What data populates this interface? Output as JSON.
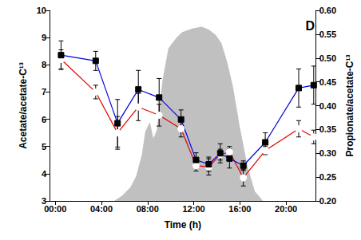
{
  "chart_data": {
    "type": "line",
    "annotation": "D",
    "x_label": "Time (h)",
    "y_label": "Acetate/acetate-C¹³",
    "y2_label": "Propionate/acetate-C¹³",
    "xlim": [
      -0.5,
      22.6
    ],
    "xticks": [
      {
        "value": 0,
        "label": "00:00"
      },
      {
        "value": 4,
        "label": "04:00"
      },
      {
        "value": 8,
        "label": "08:00"
      },
      {
        "value": 12,
        "label": "12:00"
      },
      {
        "value": 16,
        "label": "16:00"
      },
      {
        "value": 20,
        "label": "20:00"
      }
    ],
    "ylim": [
      3,
      10
    ],
    "yticks": [
      3,
      4,
      5,
      6,
      7,
      8,
      9,
      10
    ],
    "y2lim": [
      0.2,
      0.6
    ],
    "y2ticks": [
      {
        "value": 0.2,
        "label": "0.20"
      },
      0.25,
      {
        "value": 0.3,
        "label": "0.30"
      },
      0.35,
      {
        "value": 0.4,
        "label": "0.40"
      },
      0.45,
      {
        "value": 0.5,
        "label": "0.50"
      },
      0.55,
      {
        "value": 0.6,
        "label": "0.60"
      }
    ],
    "grid": false,
    "series": [
      {
        "type": "area",
        "axis": "y",
        "color": "#c0c0c0",
        "x": [
          5.1,
          5.8,
          6.5,
          7.0,
          7.5,
          7.8,
          8.2,
          8.5,
          8.8,
          9.3,
          9.8,
          10.5,
          11.0,
          12.0,
          12.7,
          13.3,
          13.9,
          14.4,
          14.9,
          15.4,
          16.0,
          16.7,
          17.3,
          18.0
        ],
        "values": [
          3.0,
          3.2,
          3.5,
          3.9,
          4.7,
          5.55,
          5.9,
          5.3,
          5.6,
          7.45,
          8.6,
          9.0,
          9.2,
          9.35,
          9.4,
          9.3,
          9.1,
          8.8,
          8.1,
          7.2,
          5.7,
          4.2,
          3.35,
          3.0
        ]
      },
      {
        "type": "line",
        "axis": "y",
        "color": "#e00000",
        "marker": "open circle",
        "x": [
          0.5,
          3.5,
          5.4,
          7.2,
          9.0,
          10.9,
          12.2,
          13.3,
          14.3,
          15.1,
          16.3,
          18.2,
          21.1,
          22.4
        ],
        "values": [
          8.2,
          7.0,
          5.5,
          6.45,
          6.15,
          5.65,
          4.3,
          4.25,
          4.7,
          4.8,
          3.85,
          4.85,
          5.65,
          5.35
        ],
        "errors": [
          0.35,
          0.25,
          0.6,
          0.5,
          0.4,
          0.3,
          0.2,
          0.3,
          0.2,
          0.2,
          0.3,
          0.15,
          0.3,
          0.25
        ]
      },
      {
        "type": "line",
        "axis": "y2",
        "color": "#0000e0",
        "marker": "square",
        "x": [
          0.5,
          3.5,
          5.4,
          7.2,
          9.0,
          10.9,
          12.2,
          13.3,
          14.3,
          15.1,
          16.3,
          18.2,
          21.1,
          22.4
        ],
        "values": [
          0.506,
          0.494,
          0.363,
          0.434,
          0.417,
          0.371,
          0.286,
          0.277,
          0.3,
          0.289,
          0.274,
          0.323,
          0.437,
          0.443
        ],
        "errors": [
          0.03,
          0.02,
          0.05,
          0.04,
          0.04,
          0.02,
          0.015,
          0.015,
          0.02,
          0.02,
          0.01,
          0.02,
          0.04,
          0.04
        ]
      }
    ]
  }
}
